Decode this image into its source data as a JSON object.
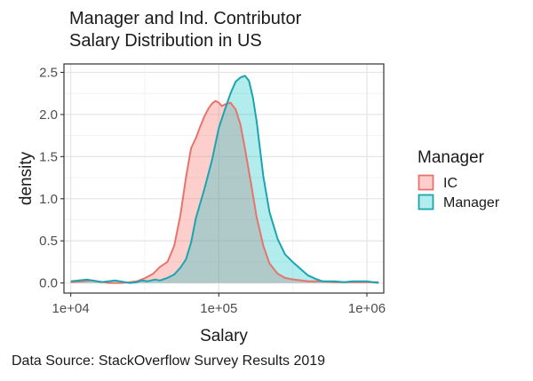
{
  "chart_data": {
    "type": "area",
    "title": "Manager and Ind. Contributor\nSalary Distribution in US",
    "title_lines": [
      "Manager and Ind. Contributor",
      "Salary Distribution in US"
    ],
    "xlabel": "Salary",
    "ylabel": "density",
    "x_scale": "log10",
    "xlim": [
      9000,
      1300000
    ],
    "ylim": [
      -0.12,
      2.6
    ],
    "x_ticks": [
      10000,
      100000,
      1000000
    ],
    "x_tick_labels": [
      "1e+04",
      "1e+05",
      "1e+06"
    ],
    "y_ticks": [
      0.0,
      0.5,
      1.0,
      1.5,
      2.0,
      2.5
    ],
    "y_tick_labels": [
      "0.0",
      "0.5",
      "1.0",
      "1.5",
      "2.0",
      "2.5"
    ],
    "grid": true,
    "legend": {
      "title": "Manager",
      "placement": "right",
      "entries": [
        "IC",
        "Manager"
      ]
    },
    "caption": "Data Source: StackOverflow Survey Results 2019",
    "series": [
      {
        "name": "IC",
        "stroke": "#e8736c",
        "fill": "#f8766d",
        "fill_opacity": 0.35,
        "x": [
          10000,
          14000,
          18000,
          22000,
          25000,
          28000,
          32000,
          36000,
          40000,
          45000,
          50000,
          55000,
          60000,
          65000,
          70000,
          75000,
          80000,
          85000,
          90000,
          95000,
          100000,
          105000,
          110000,
          115000,
          120000,
          130000,
          140000,
          150000,
          165000,
          180000,
          200000,
          220000,
          250000,
          280000,
          320000,
          360000,
          400000,
          500000,
          600000,
          800000,
          1000000,
          1200000
        ],
        "y": [
          0.01,
          0.03,
          0.0,
          0.0,
          0.01,
          0.02,
          0.06,
          0.11,
          0.19,
          0.25,
          0.44,
          0.8,
          1.25,
          1.6,
          1.72,
          1.86,
          1.98,
          2.07,
          2.13,
          2.16,
          2.14,
          2.1,
          2.12,
          2.13,
          2.14,
          2.06,
          1.88,
          1.6,
          1.18,
          0.78,
          0.44,
          0.23,
          0.11,
          0.06,
          0.04,
          0.03,
          0.02,
          0.02,
          0.01,
          0.01,
          0.01,
          0.01
        ]
      },
      {
        "name": "Manager",
        "stroke": "#1aa5b0",
        "fill": "#00bfc4",
        "fill_opacity": 0.3,
        "x": [
          10000,
          13000,
          16000,
          20000,
          25000,
          28000,
          30000,
          33000,
          37000,
          40000,
          45000,
          50000,
          55000,
          60000,
          65000,
          70000,
          75000,
          80000,
          90000,
          100000,
          110000,
          120000,
          130000,
          140000,
          150000,
          160000,
          170000,
          180000,
          190000,
          200000,
          220000,
          250000,
          280000,
          320000,
          360000,
          400000,
          450000,
          500000,
          600000,
          700000,
          800000,
          1000000,
          1200000
        ],
        "y": [
          0.02,
          0.04,
          0.01,
          0.03,
          0.0,
          0.01,
          0.03,
          0.02,
          0.04,
          0.03,
          0.06,
          0.1,
          0.18,
          0.28,
          0.48,
          0.77,
          0.95,
          1.12,
          1.46,
          1.84,
          2.06,
          2.25,
          2.39,
          2.44,
          2.46,
          2.4,
          2.2,
          1.92,
          1.58,
          1.26,
          0.84,
          0.52,
          0.34,
          0.24,
          0.16,
          0.09,
          0.05,
          0.02,
          0.02,
          0.01,
          0.02,
          0.02,
          0.0
        ]
      }
    ]
  }
}
